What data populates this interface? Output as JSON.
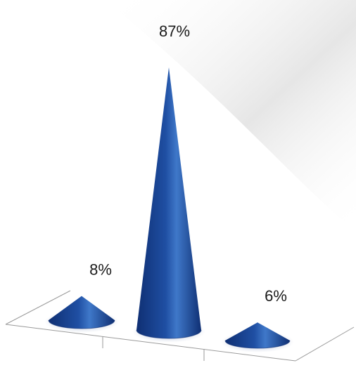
{
  "chart_data": {
    "type": "bar",
    "style": "3d-cones",
    "categories": [
      "",
      "",
      ""
    ],
    "values": [
      8,
      87,
      6
    ],
    "labels": [
      "8%",
      "87%",
      "6%"
    ],
    "ylim": [
      0,
      100
    ],
    "grid": false,
    "legend": "none",
    "colors": {
      "cone_dark": "#0f2f73",
      "cone_mid": "#1f4fa3",
      "cone_light": "#3f78c9",
      "axis": "#9a9a9a",
      "background_panel": "#ececec"
    }
  }
}
